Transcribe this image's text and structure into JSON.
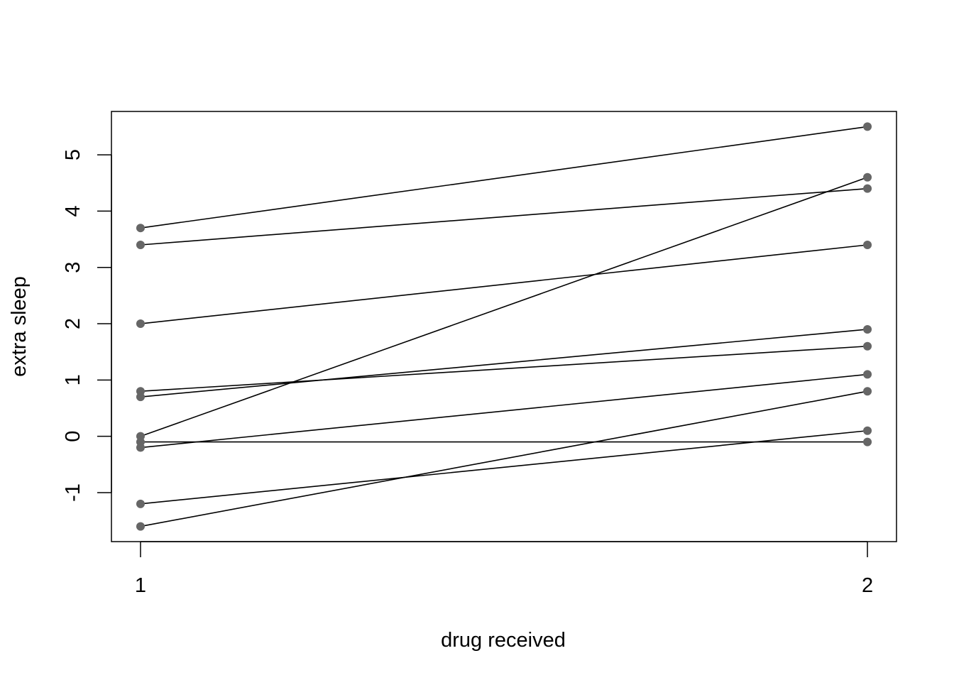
{
  "chart_data": {
    "type": "line",
    "title": "",
    "xlabel": "drug received",
    "ylabel": "extra sleep",
    "x": [
      1,
      2
    ],
    "xticks": [
      1,
      2
    ],
    "yticks": [
      -1,
      0,
      1,
      2,
      3,
      4,
      5
    ],
    "xlim": [
      0.96,
      2.04
    ],
    "ylim": [
      -1.87,
      5.77
    ],
    "grid": false,
    "legend": "none",
    "line_color": "#000000",
    "point_color": "#666666",
    "series": [
      {
        "values": [
          0.7,
          1.9
        ]
      },
      {
        "values": [
          -1.6,
          0.8
        ]
      },
      {
        "values": [
          -0.2,
          1.1
        ]
      },
      {
        "values": [
          -1.2,
          0.1
        ]
      },
      {
        "values": [
          -0.1,
          -0.1
        ]
      },
      {
        "values": [
          3.4,
          4.4
        ]
      },
      {
        "values": [
          3.7,
          5.5
        ]
      },
      {
        "values": [
          0.8,
          1.6
        ]
      },
      {
        "values": [
          0.0,
          4.6
        ]
      },
      {
        "values": [
          2.0,
          3.4
        ]
      }
    ]
  }
}
